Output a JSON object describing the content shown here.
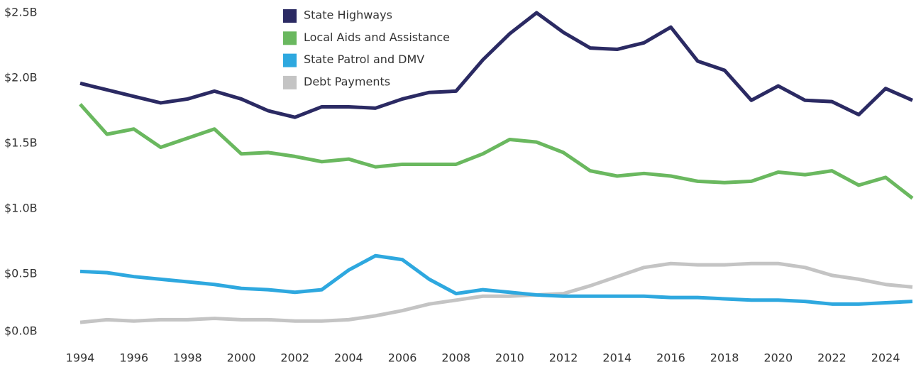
{
  "chart_data": {
    "type": "line",
    "x": [
      1994,
      1995,
      1996,
      1997,
      1998,
      1999,
      2000,
      2001,
      2002,
      2003,
      2004,
      2005,
      2006,
      2007,
      2008,
      2009,
      2010,
      2011,
      2012,
      2013,
      2014,
      2015,
      2016,
      2017,
      2018,
      2019,
      2020,
      2021,
      2022,
      2023,
      2024,
      2025
    ],
    "series": [
      {
        "name": "State Highways",
        "color": "#2b2a63",
        "values": [
          1.96,
          1.91,
          1.86,
          1.81,
          1.84,
          1.9,
          1.84,
          1.75,
          1.7,
          1.78,
          1.78,
          1.77,
          1.84,
          1.89,
          1.9,
          2.14,
          2.34,
          2.5,
          2.35,
          2.23,
          2.22,
          2.27,
          2.39,
          2.13,
          2.06,
          1.83,
          1.94,
          1.83,
          1.82,
          1.72,
          1.92,
          1.83
        ]
      },
      {
        "name": "Local Aids and Assistance",
        "color": "#6ab85f",
        "values": [
          1.8,
          1.57,
          1.61,
          1.47,
          1.54,
          1.61,
          1.42,
          1.43,
          1.4,
          1.36,
          1.38,
          1.32,
          1.34,
          1.34,
          1.34,
          1.42,
          1.53,
          1.51,
          1.43,
          1.29,
          1.25,
          1.27,
          1.25,
          1.21,
          1.2,
          1.21,
          1.28,
          1.26,
          1.29,
          1.18,
          1.24,
          1.08
        ]
      },
      {
        "name": "State Patrol and DMV",
        "color": "#2ea8df",
        "values": [
          0.52,
          0.51,
          0.48,
          0.46,
          0.44,
          0.42,
          0.39,
          0.38,
          0.36,
          0.38,
          0.53,
          0.64,
          0.61,
          0.46,
          0.35,
          0.38,
          0.36,
          0.34,
          0.33,
          0.33,
          0.33,
          0.33,
          0.32,
          0.32,
          0.31,
          0.3,
          0.3,
          0.29,
          0.27,
          0.27,
          0.28,
          0.29
        ]
      },
      {
        "name": "Debt Payments",
        "color": "#c4c4c4",
        "values": [
          0.13,
          0.15,
          0.14,
          0.15,
          0.15,
          0.16,
          0.15,
          0.15,
          0.14,
          0.14,
          0.15,
          0.18,
          0.22,
          0.27,
          0.3,
          0.33,
          0.33,
          0.34,
          0.35,
          0.41,
          0.48,
          0.55,
          0.58,
          0.57,
          0.57,
          0.58,
          0.58,
          0.55,
          0.49,
          0.46,
          0.42,
          0.4
        ]
      }
    ],
    "xlim": [
      1994,
      2025
    ],
    "xticks": [
      1994,
      1996,
      1998,
      2000,
      2002,
      2004,
      2006,
      2008,
      2010,
      2012,
      2014,
      2016,
      2018,
      2020,
      2022,
      2024
    ],
    "ylim": [
      0,
      2.5
    ],
    "yticks": [
      {
        "value": 0,
        "label": "$0.0B"
      },
      {
        "value": 0.5,
        "label": "$0.5B"
      },
      {
        "value": 1,
        "label": "$1.0B"
      },
      {
        "value": 1.5,
        "label": "$1.5B"
      },
      {
        "value": 2,
        "label": "$2.0B"
      },
      {
        "value": 2.5,
        "label": "$2.5B"
      }
    ],
    "grid": false
  }
}
